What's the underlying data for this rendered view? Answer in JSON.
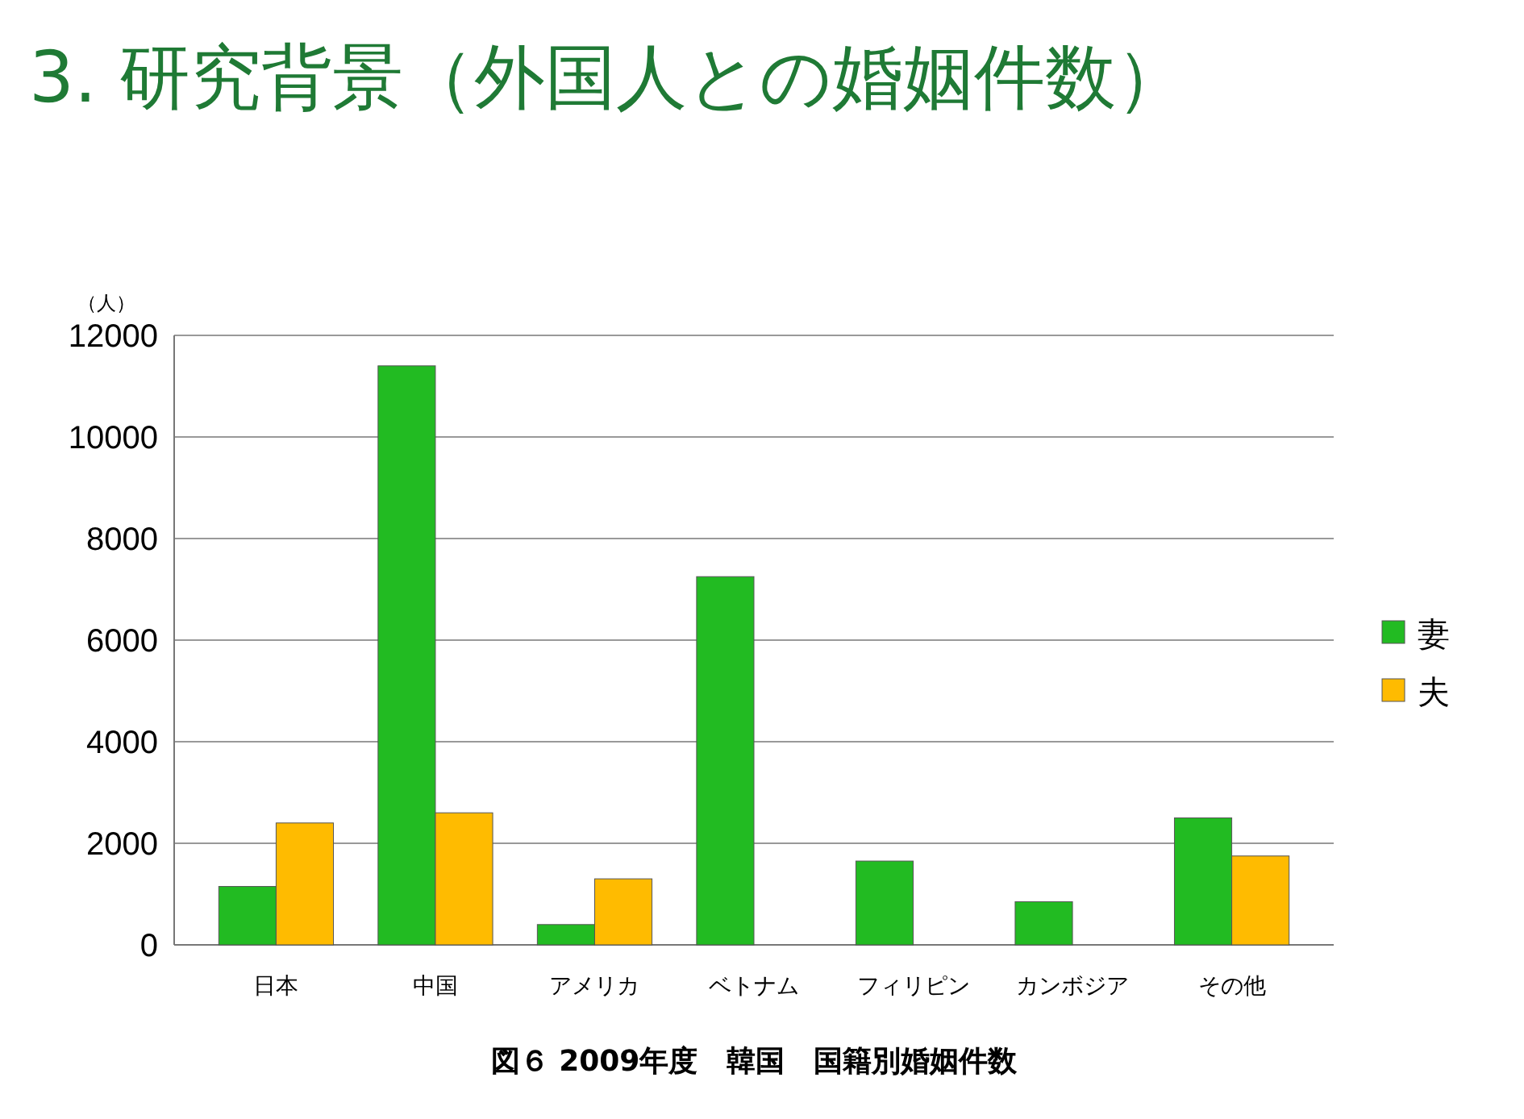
{
  "chart_data": {
    "type": "bar",
    "title": "3. 研究背景（外国人との婚姻件数）",
    "ylabel": "（人）",
    "categories": [
      "日本",
      "中国",
      "アメリカ",
      "ベトナム",
      "フィリピン",
      "カンボジア",
      "その他"
    ],
    "series": [
      {
        "name": "妻",
        "color": "#22bb22",
        "values": [
          1150,
          11400,
          400,
          7250,
          1650,
          850,
          2500
        ]
      },
      {
        "name": "夫",
        "color": "#ffbb00",
        "values": [
          2400,
          2600,
          1300,
          0,
          0,
          0,
          1750
        ]
      }
    ],
    "ylim": [
      0,
      12000
    ],
    "yticks": [
      0,
      2000,
      4000,
      6000,
      8000,
      10000,
      12000
    ],
    "grid": "y",
    "legend": "right",
    "annotations": [
      "図６ 2009年度　韓国　国籍別婚姻件数"
    ]
  }
}
